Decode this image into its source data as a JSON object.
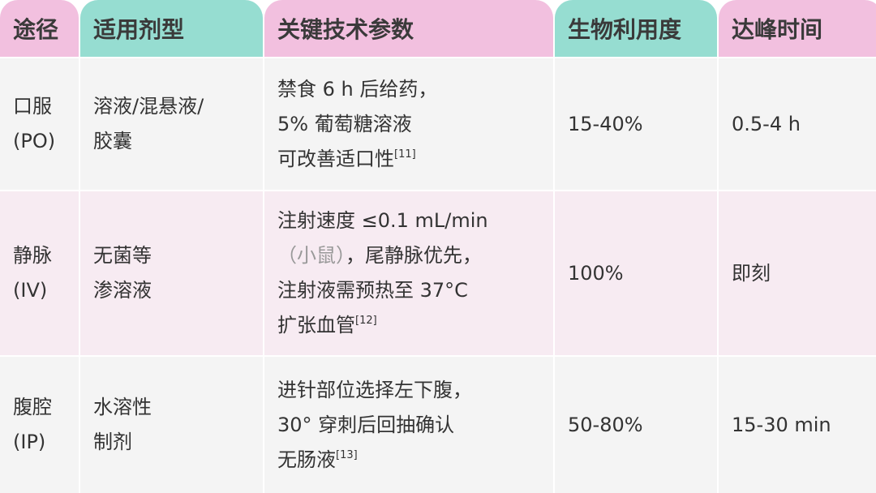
{
  "headers": [
    "途径",
    "适用剂型",
    "关键技术参数",
    "生物利用度",
    "达峰时间"
  ],
  "header_colors": {
    "pink": "#f2c0df",
    "teal": "#96ddd1"
  },
  "rows": [
    {
      "route": "口服\n(PO)",
      "form": "溶液/混悬液/\n胶囊",
      "params_pre": "禁食 6 h 后给药，\n5% 葡萄糖溶液\n可改善适口性",
      "params_ref": "[11]",
      "bioavailability": "15-40%",
      "tmax": "0.5-4 h"
    },
    {
      "route": "静脉\n(IV)",
      "form": "无菌等\n渗溶液",
      "params_line1": "注射速度 ≤0.1 mL/min",
      "params_muted": "（小鼠）",
      "params_rest": "，尾静脉优先，\n注射液需预热至 37°C\n扩张血管",
      "params_ref": "[12]",
      "bioavailability": "100%",
      "tmax": "即刻"
    },
    {
      "route": "腹腔\n(IP)",
      "form": "水溶性\n制剂",
      "params_pre": "进针部位选择左下腹，\n30° 穿刺后回抽确认\n无肠液",
      "params_ref": "[13]",
      "bioavailability": "50-80%",
      "tmax": "15-30 min"
    }
  ]
}
